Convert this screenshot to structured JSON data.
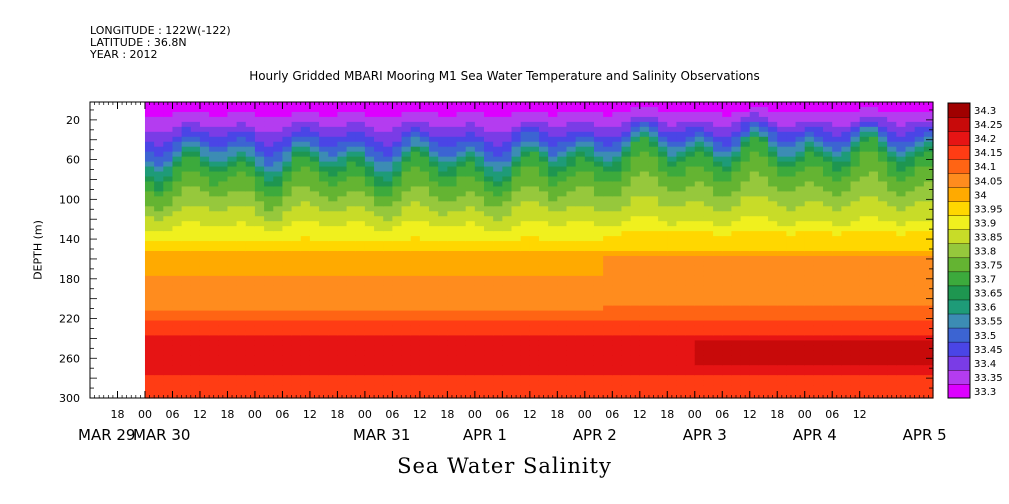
{
  "header": {
    "longitude": "LONGITUDE : 122W(-122)",
    "latitude": "LATITUDE : 36.8N",
    "year": "YEAR : 2012"
  },
  "chart_data": {
    "type": "heatmap",
    "title": "Hourly Gridded MBARI Mooring M1 Sea Water Temperature and Salinity Observations",
    "xlabel": "Sea Water Salinity",
    "ylabel": "DEPTH (m)",
    "x_hours_range": [
      0,
      168
    ],
    "x_range_hours_from_mar29": [
      -12,
      172
    ],
    "data_start_hour": 0,
    "ylim": [
      300,
      2
    ],
    "y_ticks": [
      "20",
      "60",
      "100",
      "140",
      "180",
      "220",
      "260",
      "300"
    ],
    "y_tick_values": [
      20,
      60,
      100,
      140,
      180,
      220,
      260,
      300
    ],
    "x_hour_tick_labels": [
      "18",
      "00",
      "06",
      "12",
      "18",
      "00",
      "06",
      "12",
      "18",
      "00",
      "06",
      "12",
      "18",
      "00",
      "06",
      "12",
      "18",
      "00",
      "06",
      "12",
      "18",
      "00",
      "06",
      "12",
      "18",
      "00",
      "06",
      "12"
    ],
    "x_hour_tick_values": [
      -6,
      0,
      6,
      12,
      18,
      24,
      30,
      36,
      42,
      48,
      54,
      60,
      66,
      72,
      78,
      84,
      90,
      96,
      102,
      108,
      114,
      120,
      126,
      132,
      138,
      144,
      150,
      156
    ],
    "x_day_labels": [
      "MAR 29",
      "MAR 30",
      "MAR 31",
      "APR  1",
      "APR  2",
      "APR  3",
      "APR  4",
      "APR  5"
    ],
    "x_day_label_hours": [
      -12,
      0,
      48,
      72,
      96,
      120,
      144,
      168
    ],
    "colorbar": {
      "levels": [
        "33.3",
        "33.35",
        "33.4",
        "33.45",
        "33.5",
        "33.55",
        "33.6",
        "33.65",
        "33.7",
        "33.75",
        "33.8",
        "33.85",
        "33.9",
        "33.95",
        "34",
        "34.05",
        "34.1",
        "34.15",
        "34.2",
        "34.25",
        "34.3"
      ],
      "colors": [
        "#dd00ff",
        "#b43cf0",
        "#7a3ce6",
        "#4a45e6",
        "#3c64d2",
        "#3c8cb4",
        "#1e9b78",
        "#1e9650",
        "#3caa3c",
        "#64b432",
        "#96c83c",
        "#c8dc28",
        "#f0f01e",
        "#ffd700",
        "#ffaa00",
        "#ff8c1e",
        "#ff6414",
        "#ff3c14",
        "#e61414",
        "#c80a0a",
        "#a00000"
      ]
    }
  }
}
